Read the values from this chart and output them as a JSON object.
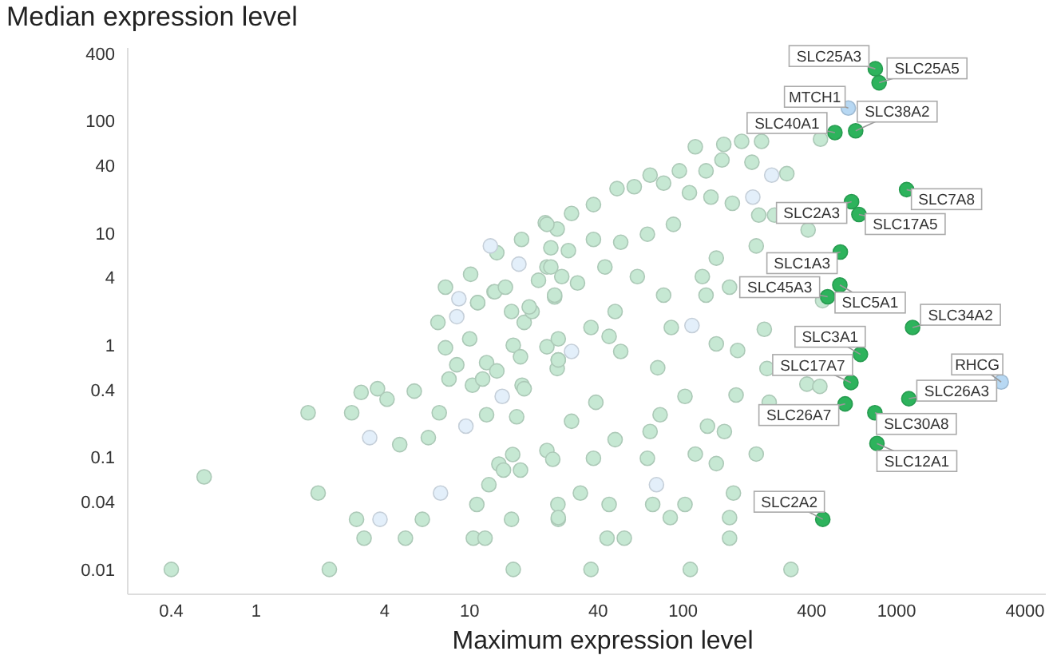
{
  "chart_data": {
    "type": "scatter",
    "xlabel": "Maximum expression level",
    "ylabel": "Median expression level",
    "log": "xy",
    "marker": "circle",
    "xlim": [
      0.25,
      5000
    ],
    "xticks": [
      0.4,
      1,
      4,
      10,
      40,
      100,
      400,
      1000,
      4000
    ],
    "ylim": [
      0.006,
      450
    ],
    "yticks": [
      0.01,
      0.04,
      0.1,
      0.4,
      1,
      4,
      10,
      40,
      100,
      400
    ],
    "series": [
      {
        "color": "#c6e8d3",
        "x": [
          0.4,
          0.57,
          1.75,
          1.95,
          2.2,
          2.8,
          3.1,
          2.95,
          3.2,
          3.7,
          4.1,
          4.7,
          5,
          5.5,
          6,
          6.4,
          7.2,
          7.7,
          8,
          8.7,
          7.1,
          10,
          10.3,
          11.5,
          12,
          12,
          12.3,
          10.8,
          10.4,
          11.8,
          13.4,
          10.9,
          13,
          16,
          17.3,
          15.7,
          18,
          19.6,
          17.6,
          18,
          16.6,
          13.7,
          14.4,
          15.9,
          17.3,
          15.7,
          16,
          23,
          26,
          25.7,
          26,
          23,
          24.5,
          25.9,
          26,
          25,
          22.6,
          17.5,
          13.4,
          10.1,
          7.7,
          10.9,
          13.1,
          14.7,
          21,
          25,
          25.7,
          24,
          23,
          27,
          19,
          114,
          155,
          188,
          233,
          440,
          152,
          210,
          306,
          96,
          128,
          70,
          59,
          49,
          38,
          30,
          23,
          81,
          107,
          135,
          170,
          226,
          268,
          385,
          220,
          143,
          123,
          165,
          90,
          68,
          51,
          38,
          29,
          24,
          32,
          43,
          61,
          81,
          48,
          450,
          26,
          37,
          45,
          51,
          88,
          128,
          143,
          180,
          240,
          247,
          380,
          437,
          253,
          177,
          102,
          76,
          39,
          30,
          48,
          70,
          78,
          130,
          156,
          114,
          143,
          220,
          38,
          68,
          33,
          45,
          72,
          102,
          172,
          165,
          87,
          26,
          44,
          53,
          165,
          37,
          108,
          320
        ],
        "values": [
          0.01,
          0.067,
          0.25,
          0.048,
          0.01,
          0.25,
          0.38,
          0.028,
          0.019,
          0.41,
          0.33,
          0.13,
          0.019,
          0.39,
          0.028,
          0.15,
          0.25,
          0.95,
          0.5,
          0.67,
          1.6,
          1.14,
          0.44,
          0.5,
          0.7,
          0.24,
          0.057,
          0.038,
          0.019,
          0.019,
          0.59,
          2.4,
          3,
          1,
          0.79,
          2,
          1.6,
          2,
          0.44,
          0.41,
          0.23,
          0.087,
          0.077,
          0.106,
          0.077,
          0.028,
          0.01,
          0.97,
          0.74,
          0.62,
          1.14,
          0.115,
          0.096,
          0.038,
          0.028,
          2.7,
          12.4,
          8.8,
          6.7,
          4.3,
          3.3,
          2.4,
          3,
          3.3,
          3.8,
          2.8,
          10.9,
          7.4,
          5,
          4.1,
          2.2,
          59,
          62,
          66,
          66,
          69,
          45,
          43,
          34,
          36,
          36,
          33,
          26,
          25,
          18,
          15,
          12,
          28,
          23,
          21,
          18.5,
          14.5,
          14.5,
          10.7,
          7.7,
          6,
          4.1,
          3.3,
          12,
          9.8,
          8.3,
          8.8,
          7,
          5,
          3.6,
          5,
          4.1,
          2.8,
          2,
          2.5,
          0.74,
          1.44,
          1.2,
          0.88,
          1.44,
          2.8,
          1.03,
          0.9,
          1.39,
          0.62,
          0.45,
          0.43,
          0.31,
          0.36,
          0.35,
          0.63,
          0.31,
          0.21,
          0.144,
          0.17,
          0.24,
          0.19,
          0.17,
          0.107,
          0.088,
          0.107,
          0.098,
          0.098,
          0.048,
          0.038,
          0.038,
          0.038,
          0.048,
          0.029,
          0.029,
          0.029,
          0.019,
          0.019,
          0.019,
          0.01,
          0.01,
          0.01
        ]
      },
      {
        "color": "#e3effa",
        "x": [
          8.9,
          8.7,
          3.4,
          3.8,
          7.3,
          14.2,
          9.6,
          12.5,
          17,
          260,
          212,
          75,
          30,
          110
        ],
        "values": [
          2.6,
          1.8,
          0.15,
          0.028,
          0.048,
          0.35,
          0.19,
          7.7,
          5.3,
          33,
          21,
          0.057,
          0.88,
          1.5
        ]
      },
      {
        "color": "#2db35c",
        "x": [
          795,
          828,
          643,
          514,
          1114,
          615,
          666,
          545,
          475,
          542,
          1188,
          677,
          611,
          1141,
          574,
          791,
          809,
          451
        ],
        "values": [
          293,
          220,
          82,
          79,
          24.5,
          19.1,
          14.7,
          6.8,
          2.71,
          3.45,
          1.44,
          0.83,
          0.465,
          0.334,
          0.3,
          0.25,
          0.133,
          0.028
        ]
      },
      {
        "color": "#b7d8f3",
        "x": [
          594,
          3090
        ],
        "values": [
          131,
          0.47
        ]
      }
    ],
    "annotations": [
      {
        "text": "SLC25A3",
        "x": 795,
        "y": 293
      },
      {
        "text": "SLC25A5",
        "x": 828,
        "y": 220
      },
      {
        "text": "MTCH1",
        "x": 594,
        "y": 131
      },
      {
        "text": "SLC38A2",
        "x": 643,
        "y": 82
      },
      {
        "text": "SLC40A1",
        "x": 514,
        "y": 79
      },
      {
        "text": "SLC7A8",
        "x": 1114,
        "y": 24.5
      },
      {
        "text": "SLC2A3",
        "x": 615,
        "y": 19.1
      },
      {
        "text": "SLC17A5",
        "x": 666,
        "y": 14.7
      },
      {
        "text": "SLC1A3",
        "x": 545,
        "y": 6.8
      },
      {
        "text": "SLC45A3",
        "x": 475,
        "y": 2.71
      },
      {
        "text": "SLC5A1",
        "x": 542,
        "y": 3.45
      },
      {
        "text": "SLC34A2",
        "x": 1188,
        "y": 1.44
      },
      {
        "text": "SLC3A1",
        "x": 677,
        "y": 0.83
      },
      {
        "text": "SLC17A7",
        "x": 611,
        "y": 0.465
      },
      {
        "text": "RHCG",
        "x": 3090,
        "y": 0.47
      },
      {
        "text": "SLC26A3",
        "x": 1141,
        "y": 0.334
      },
      {
        "text": "SLC26A7",
        "x": 574,
        "y": 0.3
      },
      {
        "text": "SLC30A8",
        "x": 791,
        "y": 0.25
      },
      {
        "text": "SLC12A1",
        "x": 809,
        "y": 0.133
      },
      {
        "text": "SLC2A2",
        "x": 451,
        "y": 0.028
      }
    ]
  }
}
